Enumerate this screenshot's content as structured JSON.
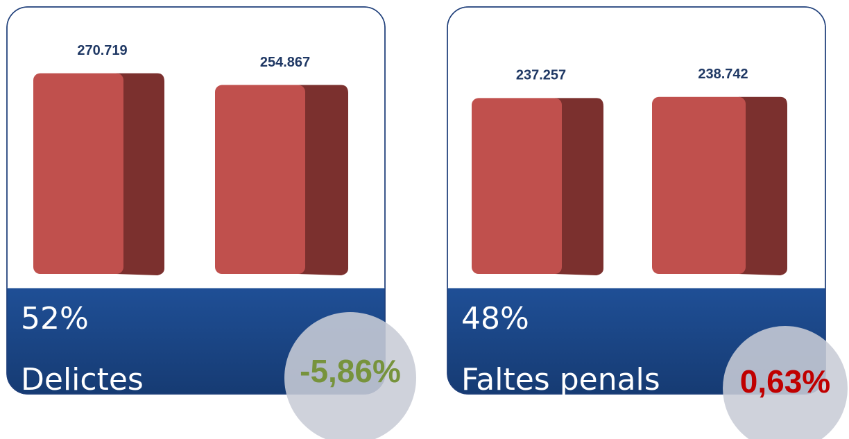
{
  "chart_data": [
    {
      "type": "bar",
      "categories": [
        null,
        null
      ],
      "values": [
        270719,
        254867
      ],
      "value_labels": [
        "270.719",
        "254.867"
      ],
      "color": "#c0504d",
      "ylim": [
        0,
        290000
      ],
      "share": "52%",
      "name": "Delictes",
      "change": "-5,86%",
      "change_color": "#77933c"
    },
    {
      "type": "bar",
      "categories": [
        null,
        null
      ],
      "values": [
        237257,
        238742
      ],
      "value_labels": [
        "237.257",
        "238.742"
      ],
      "color": "#c0504d",
      "ylim": [
        0,
        290000
      ],
      "share": "48%",
      "name": "Faltes penals",
      "change": "0,63%",
      "change_color": "#c00000"
    }
  ]
}
